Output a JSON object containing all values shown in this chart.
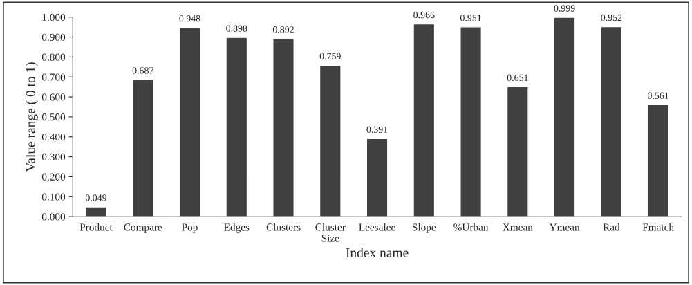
{
  "chart_data": {
    "type": "bar",
    "xlabel": "Index name",
    "ylabel": "Value range ( 0 to 1)",
    "categories": [
      "Product",
      "Compare",
      "Pop",
      "Edges",
      "Clusters",
      "Cluster\nSize",
      "Leesalee",
      "Slope",
      "%Urban",
      "Xmean",
      "Ymean",
      "Rad",
      "Fmatch"
    ],
    "values": [
      0.049,
      0.687,
      0.948,
      0.898,
      0.892,
      0.759,
      0.391,
      0.966,
      0.951,
      0.651,
      0.999,
      0.952,
      0.561
    ],
    "color": "#404040",
    "data_labels": true,
    "grid": false,
    "ylim": [
      0,
      1
    ],
    "yticks": [
      {
        "value": 0,
        "label": "0.000"
      },
      {
        "value": 0.1,
        "label": "0.100"
      },
      {
        "value": 0.2,
        "label": "0.200"
      },
      {
        "value": 0.3,
        "label": "0.300"
      },
      {
        "value": 0.4,
        "label": "0.400"
      },
      {
        "value": 0.5,
        "label": "0.500"
      },
      {
        "value": 0.6,
        "label": "0.600"
      },
      {
        "value": 0.7,
        "label": "0.700"
      },
      {
        "value": 0.8,
        "label": "0.800"
      },
      {
        "value": 0.9,
        "label": "0.900"
      },
      {
        "value": 1,
        "label": "1.000"
      }
    ]
  }
}
